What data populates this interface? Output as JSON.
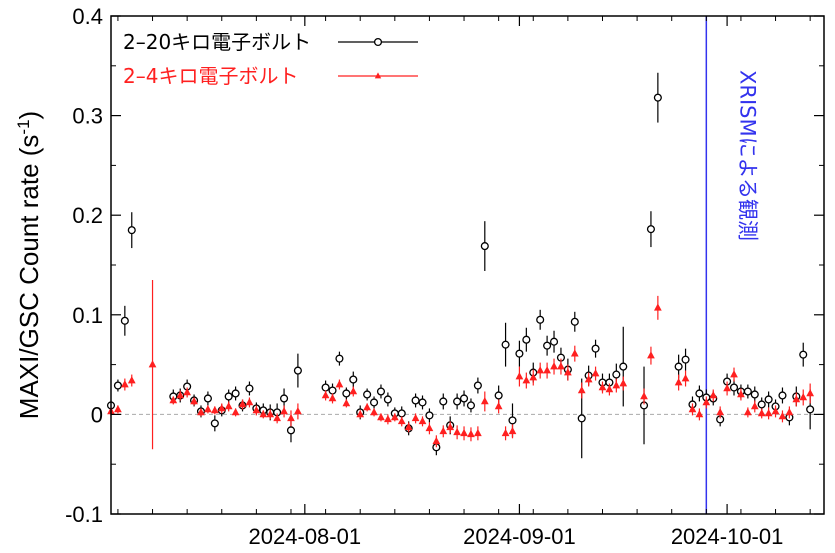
{
  "chart_data": {
    "type": "scatter",
    "ylabel": "MAXI/GSC Count rate (s",
    "ylabel_sup": "-1",
    "ylabel_end": ")",
    "ylim": [
      -0.1,
      0.4
    ],
    "xlim": [
      "2024-07-04",
      "2024-10-15"
    ],
    "yticks": [
      -0.1,
      0,
      0.1,
      0.2,
      0.3,
      0.4
    ],
    "ytick_labels": [
      "-0.1",
      "0",
      "0.1",
      "0.2",
      "0.3",
      "0.4"
    ],
    "xticks": [
      "2024-08-01",
      "2024-09-01",
      "2024-10-01"
    ],
    "zero_line": true,
    "legend_position": "top-left",
    "annotation": {
      "text": "XRISMによる観測",
      "date": "2024-09-28",
      "color": "#3333ee"
    },
    "series": [
      {
        "name": "2–20キロ電子ボルト",
        "color": "#000000",
        "marker": "open-circle",
        "points": [
          [
            "2024-07-04",
            0.009,
            0.005
          ],
          [
            "2024-07-05",
            0.029,
            0.006
          ],
          [
            "2024-07-06",
            0.094,
            0.015
          ],
          [
            "2024-07-07",
            0.185,
            0.018
          ],
          [
            "2024-07-13",
            0.018,
            0.007
          ],
          [
            "2024-07-14",
            0.019,
            0.007
          ],
          [
            "2024-07-15",
            0.028,
            0.007
          ],
          [
            "2024-07-16",
            0.014,
            0.006
          ],
          [
            "2024-07-17",
            0.003,
            0.006
          ],
          [
            "2024-07-18",
            0.016,
            0.007
          ],
          [
            "2024-07-19",
            -0.009,
            0.008
          ],
          [
            "2024-07-20",
            0.004,
            0.006
          ],
          [
            "2024-07-21",
            0.018,
            0.007
          ],
          [
            "2024-07-22",
            0.021,
            0.007
          ],
          [
            "2024-07-23",
            0.009,
            0.006
          ],
          [
            "2024-07-24",
            0.026,
            0.007
          ],
          [
            "2024-07-25",
            0.006,
            0.006
          ],
          [
            "2024-07-26",
            0.004,
            0.007
          ],
          [
            "2024-07-27",
            0.002,
            0.008
          ],
          [
            "2024-07-28",
            0.002,
            0.009
          ],
          [
            "2024-07-29",
            0.016,
            0.01
          ],
          [
            "2024-07-30",
            -0.016,
            0.012
          ],
          [
            "2024-07-31",
            0.044,
            0.017
          ],
          [
            "2024-08-04",
            0.027,
            0.007
          ],
          [
            "2024-08-05",
            0.024,
            0.007
          ],
          [
            "2024-08-06",
            0.056,
            0.007
          ],
          [
            "2024-08-07",
            0.021,
            0.006
          ],
          [
            "2024-08-08",
            0.035,
            0.008
          ],
          [
            "2024-08-09",
            0.002,
            0.007
          ],
          [
            "2024-08-10",
            0.02,
            0.006
          ],
          [
            "2024-08-11",
            0.012,
            0.006
          ],
          [
            "2024-08-12",
            0.023,
            0.007
          ],
          [
            "2024-08-13",
            0.015,
            0.007
          ],
          [
            "2024-08-14",
            0.001,
            0.006
          ],
          [
            "2024-08-15",
            0.001,
            0.007
          ],
          [
            "2024-08-16",
            -0.014,
            0.007
          ],
          [
            "2024-08-17",
            0.014,
            0.007
          ],
          [
            "2024-08-18",
            0.012,
            0.007
          ],
          [
            "2024-08-19",
            -0.001,
            0.007
          ],
          [
            "2024-08-20",
            -0.033,
            0.008
          ],
          [
            "2024-08-21",
            0.013,
            0.008
          ],
          [
            "2024-08-22",
            -0.011,
            0.009
          ],
          [
            "2024-08-23",
            0.013,
            0.008
          ],
          [
            "2024-08-24",
            0.016,
            0.008
          ],
          [
            "2024-08-25",
            0.009,
            0.007
          ],
          [
            "2024-08-26",
            0.029,
            0.008
          ],
          [
            "2024-08-27",
            0.169,
            0.025
          ],
          [
            "2024-08-29",
            0.019,
            0.01
          ],
          [
            "2024-08-30",
            0.07,
            0.022
          ],
          [
            "2024-08-31",
            -0.006,
            0.017
          ],
          [
            "2024-09-01",
            0.061,
            0.013
          ],
          [
            "2024-09-02",
            0.075,
            0.012
          ],
          [
            "2024-09-03",
            0.042,
            0.01
          ],
          [
            "2024-09-04",
            0.095,
            0.01
          ],
          [
            "2024-09-05",
            0.069,
            0.01
          ],
          [
            "2024-09-06",
            0.073,
            0.011
          ],
          [
            "2024-09-07",
            0.057,
            0.01
          ],
          [
            "2024-09-08",
            0.045,
            0.011
          ],
          [
            "2024-09-09",
            0.093,
            0.01
          ],
          [
            "2024-09-10",
            -0.004,
            0.04
          ],
          [
            "2024-09-11",
            0.039,
            0.01
          ],
          [
            "2024-09-12",
            0.066,
            0.009
          ],
          [
            "2024-09-13",
            0.032,
            0.009
          ],
          [
            "2024-09-14",
            0.032,
            0.009
          ],
          [
            "2024-09-15",
            0.04,
            0.011
          ],
          [
            "2024-09-16",
            0.048,
            0.04
          ],
          [
            "2024-09-19",
            0.009,
            0.039
          ],
          [
            "2024-09-20",
            0.186,
            0.018
          ],
          [
            "2024-09-21",
            0.318,
            0.025
          ],
          [
            "2024-09-24",
            0.048,
            0.012
          ],
          [
            "2024-09-25",
            0.055,
            0.011
          ],
          [
            "2024-09-26",
            0.01,
            0.008
          ],
          [
            "2024-09-27",
            0.021,
            0.008
          ],
          [
            "2024-09-28",
            0.017,
            0.008
          ],
          [
            "2024-09-29",
            0.016,
            0.007
          ],
          [
            "2024-09-30",
            -0.005,
            0.007
          ],
          [
            "2024-10-01",
            0.033,
            0.008
          ],
          [
            "2024-10-02",
            0.027,
            0.008
          ],
          [
            "2024-10-03",
            0.023,
            0.007
          ],
          [
            "2024-10-04",
            0.023,
            0.007
          ],
          [
            "2024-10-05",
            0.02,
            0.008
          ],
          [
            "2024-10-06",
            0.01,
            0.007
          ],
          [
            "2024-10-07",
            0.015,
            0.008
          ],
          [
            "2024-10-08",
            0.008,
            0.007
          ],
          [
            "2024-10-09",
            0.019,
            0.008
          ],
          [
            "2024-10-10",
            -0.003,
            0.008
          ],
          [
            "2024-10-11",
            0.018,
            0.01
          ],
          [
            "2024-10-12",
            0.06,
            0.012
          ],
          [
            "2024-10-13",
            0.005,
            0.02
          ]
        ]
      },
      {
        "name": "2–4キロ電子ボルト",
        "color": "#ff2020",
        "marker": "triangle",
        "points": [
          [
            "2024-07-04",
            0.003,
            0.004
          ],
          [
            "2024-07-05",
            0.005,
            0.004
          ],
          [
            "2024-07-06",
            0.03,
            0.006
          ],
          [
            "2024-07-07",
            0.034,
            0.006
          ],
          [
            "2024-07-10",
            0.05,
            0.085
          ],
          [
            "2024-07-13",
            0.014,
            0.004
          ],
          [
            "2024-07-14",
            0.019,
            0.005
          ],
          [
            "2024-07-15",
            0.022,
            0.005
          ],
          [
            "2024-07-16",
            0.013,
            0.004
          ],
          [
            "2024-07-17",
            0.002,
            0.004
          ],
          [
            "2024-07-18",
            0.005,
            0.004
          ],
          [
            "2024-07-19",
            0.004,
            0.004
          ],
          [
            "2024-07-20",
            0.006,
            0.005
          ],
          [
            "2024-07-21",
            0.008,
            0.005
          ],
          [
            "2024-07-22",
            0.002,
            0.004
          ],
          [
            "2024-07-23",
            0.01,
            0.005
          ],
          [
            "2024-07-24",
            0.012,
            0.005
          ],
          [
            "2024-07-25",
            0.004,
            0.005
          ],
          [
            "2024-07-26",
            0.0,
            0.004
          ],
          [
            "2024-07-27",
            0.0,
            0.005
          ],
          [
            "2024-07-28",
            -0.004,
            0.005
          ],
          [
            "2024-07-29",
            0.003,
            0.006
          ],
          [
            "2024-07-30",
            -0.004,
            0.008
          ],
          [
            "2024-07-31",
            0.003,
            0.008
          ],
          [
            "2024-08-04",
            0.019,
            0.005
          ],
          [
            "2024-08-05",
            0.016,
            0.005
          ],
          [
            "2024-08-06",
            0.03,
            0.005
          ],
          [
            "2024-08-07",
            0.011,
            0.004
          ],
          [
            "2024-08-08",
            0.023,
            0.005
          ],
          [
            "2024-08-09",
            0.0,
            0.004
          ],
          [
            "2024-08-10",
            0.007,
            0.004
          ],
          [
            "2024-08-11",
            0.002,
            0.004
          ],
          [
            "2024-08-12",
            -0.003,
            0.004
          ],
          [
            "2024-08-13",
            -0.005,
            0.005
          ],
          [
            "2024-08-14",
            -0.003,
            0.004
          ],
          [
            "2024-08-15",
            -0.007,
            0.005
          ],
          [
            "2024-08-16",
            -0.013,
            0.005
          ],
          [
            "2024-08-17",
            -0.004,
            0.005
          ],
          [
            "2024-08-18",
            -0.007,
            0.005
          ],
          [
            "2024-08-19",
            -0.014,
            0.006
          ],
          [
            "2024-08-20",
            -0.027,
            0.006
          ],
          [
            "2024-08-21",
            -0.017,
            0.006
          ],
          [
            "2024-08-22",
            -0.013,
            0.006
          ],
          [
            "2024-08-23",
            -0.018,
            0.007
          ],
          [
            "2024-08-24",
            -0.019,
            0.007
          ],
          [
            "2024-08-25",
            -0.02,
            0.007
          ],
          [
            "2024-08-26",
            -0.019,
            0.007
          ],
          [
            "2024-08-27",
            0.013,
            0.01
          ],
          [
            "2024-08-29",
            0.008,
            0.007
          ],
          [
            "2024-08-30",
            -0.019,
            0.007
          ],
          [
            "2024-08-31",
            -0.017,
            0.007
          ],
          [
            "2024-09-01",
            0.038,
            0.01
          ],
          [
            "2024-09-02",
            0.034,
            0.008
          ],
          [
            "2024-09-03",
            0.037,
            0.008
          ],
          [
            "2024-09-04",
            0.044,
            0.008
          ],
          [
            "2024-09-05",
            0.044,
            0.008
          ],
          [
            "2024-09-06",
            0.048,
            0.008
          ],
          [
            "2024-09-07",
            0.048,
            0.008
          ],
          [
            "2024-09-08",
            0.042,
            0.008
          ],
          [
            "2024-09-09",
            0.061,
            0.008
          ],
          [
            "2024-09-10",
            0.024,
            0.008
          ],
          [
            "2024-09-11",
            0.035,
            0.007
          ],
          [
            "2024-09-12",
            0.041,
            0.007
          ],
          [
            "2024-09-13",
            0.027,
            0.006
          ],
          [
            "2024-09-14",
            0.025,
            0.006
          ],
          [
            "2024-09-15",
            0.029,
            0.007
          ],
          [
            "2024-09-16",
            0.031,
            0.007
          ],
          [
            "2024-09-19",
            0.018,
            0.008
          ],
          [
            "2024-09-20",
            0.059,
            0.009
          ],
          [
            "2024-09-21",
            0.107,
            0.012
          ],
          [
            "2024-09-24",
            0.032,
            0.008
          ],
          [
            "2024-09-25",
            0.036,
            0.008
          ],
          [
            "2024-09-26",
            0.005,
            0.006
          ],
          [
            "2024-09-27",
            0.0,
            0.006
          ],
          [
            "2024-09-28",
            0.012,
            0.006
          ],
          [
            "2024-09-29",
            0.019,
            0.006
          ],
          [
            "2024-09-30",
            0.002,
            0.006
          ],
          [
            "2024-10-01",
            0.026,
            0.007
          ],
          [
            "2024-10-02",
            0.04,
            0.007
          ],
          [
            "2024-10-03",
            0.02,
            0.006
          ],
          [
            "2024-10-04",
            0.002,
            0.005
          ],
          [
            "2024-10-05",
            0.008,
            0.006
          ],
          [
            "2024-10-06",
            0.001,
            0.005
          ],
          [
            "2024-10-07",
            0.001,
            0.006
          ],
          [
            "2024-10-08",
            0.003,
            0.006
          ],
          [
            "2024-10-09",
            -0.002,
            0.006
          ],
          [
            "2024-10-10",
            0.002,
            0.006
          ],
          [
            "2024-10-11",
            0.015,
            0.007
          ],
          [
            "2024-10-12",
            0.017,
            0.008
          ],
          [
            "2024-10-13",
            0.021,
            0.01
          ]
        ]
      }
    ]
  }
}
